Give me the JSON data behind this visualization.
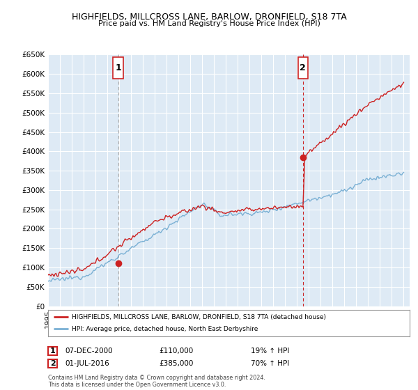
{
  "title1": "HIGHFIELDS, MILLCROSS LANE, BARLOW, DRONFIELD, S18 7TA",
  "title2": "Price paid vs. HM Land Registry's House Price Index (HPI)",
  "legend_line1": "HIGHFIELDS, MILLCROSS LANE, BARLOW, DRONFIELD, S18 7TA (detached house)",
  "legend_line2": "HPI: Average price, detached house, North East Derbyshire",
  "annotation1_date": "07-DEC-2000",
  "annotation1_price": "£110,000",
  "annotation1_hpi": "19% ↑ HPI",
  "annotation2_date": "01-JUL-2016",
  "annotation2_price": "£385,000",
  "annotation2_hpi": "70% ↑ HPI",
  "footer": "Contains HM Land Registry data © Crown copyright and database right 2024.\nThis data is licensed under the Open Government Licence v3.0.",
  "hpi_color": "#7ab0d4",
  "price_color": "#cc2222",
  "vline1_color": "#aaaaaa",
  "vline2_color": "#cc2222",
  "annotation_color": "#cc2222",
  "plot_bg_color": "#deeaf5",
  "fig_bg_color": "#ffffff",
  "grid_color": "#ffffff",
  "ylim_min": 0,
  "ylim_max": 650000,
  "ytick_step": 50000,
  "sale1_year": 2000.9167,
  "sale1_price": 110000,
  "sale2_year": 2016.5,
  "sale2_price": 385000,
  "xmin": 1995,
  "xmax": 2025.5
}
